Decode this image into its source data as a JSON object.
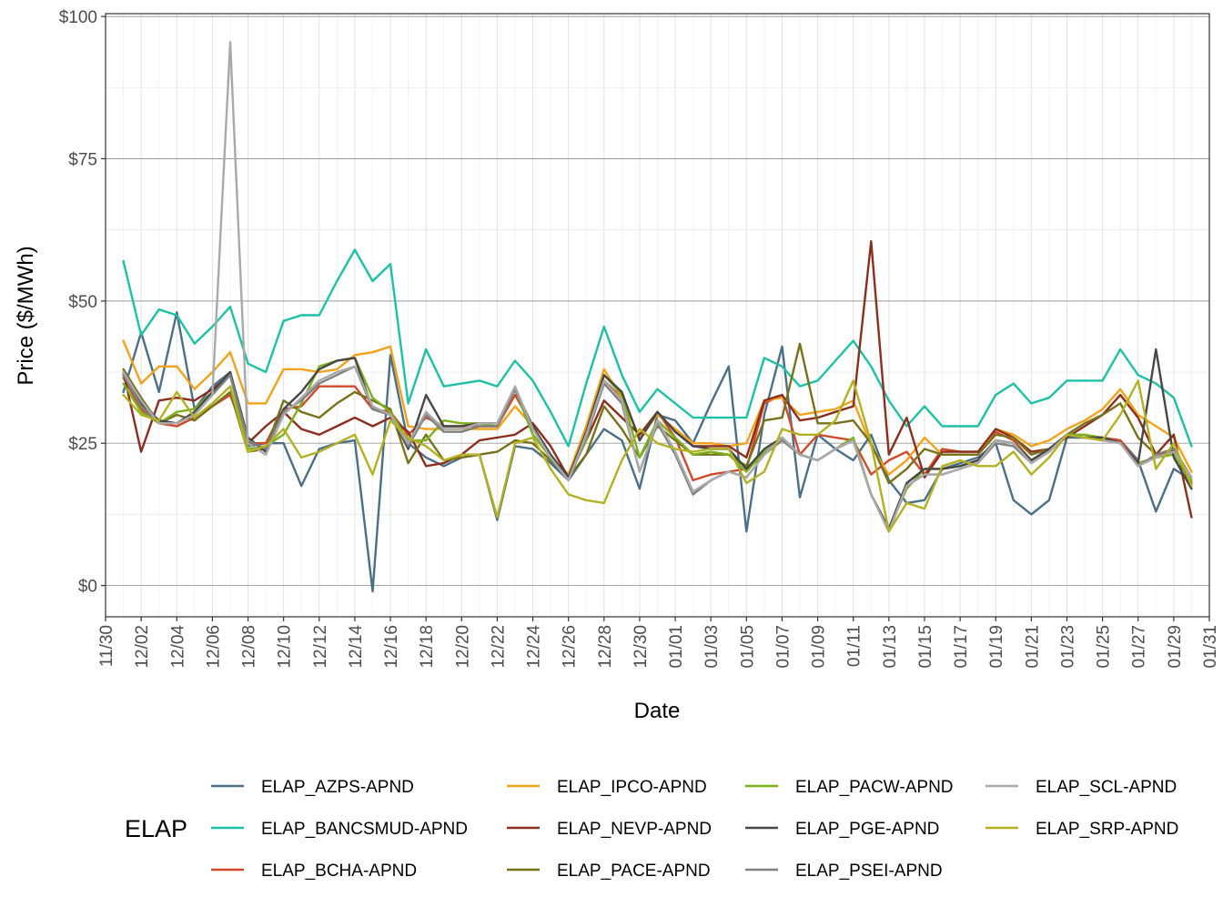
{
  "chart_data": {
    "type": "line",
    "xlabel": "Date",
    "ylabel": "Price ($/MWh)",
    "ylim": [
      -5.5,
      100.5
    ],
    "y_ticks": [
      {
        "value": 0,
        "label": "$0"
      },
      {
        "value": 25,
        "label": "$25"
      },
      {
        "value": 50,
        "label": "$50"
      },
      {
        "value": 75,
        "label": "$75"
      },
      {
        "value": 100,
        "label": "$100"
      }
    ],
    "x_tick_labels": [
      "11/30",
      "12/02",
      "12/04",
      "12/06",
      "12/08",
      "12/10",
      "12/12",
      "12/14",
      "12/16",
      "12/18",
      "12/20",
      "12/22",
      "12/24",
      "12/26",
      "12/28",
      "12/30",
      "01/01",
      "01/03",
      "01/05",
      "01/07",
      "01/09",
      "01/11",
      "01/13",
      "01/15",
      "01/17",
      "01/19",
      "01/21",
      "01/23",
      "01/25",
      "01/27",
      "01/29",
      "01/31"
    ],
    "x": [
      "12/01",
      "12/02",
      "12/03",
      "12/04",
      "12/05",
      "12/06",
      "12/07",
      "12/08",
      "12/09",
      "12/10",
      "12/11",
      "12/12",
      "12/13",
      "12/14",
      "12/15",
      "12/16",
      "12/17",
      "12/18",
      "12/19",
      "12/20",
      "12/21",
      "12/22",
      "12/23",
      "12/24",
      "12/25",
      "12/26",
      "12/27",
      "12/28",
      "12/29",
      "12/30",
      "12/31",
      "01/01",
      "01/02",
      "01/03",
      "01/04",
      "01/05",
      "01/06",
      "01/07",
      "01/08",
      "01/09",
      "01/10",
      "01/11",
      "01/12",
      "01/13",
      "01/14",
      "01/15",
      "01/16",
      "01/17",
      "01/18",
      "01/19",
      "01/20",
      "01/21",
      "01/22",
      "01/23",
      "01/24",
      "01/25",
      "01/26",
      "01/27",
      "01/28",
      "01/29",
      "01/30"
    ],
    "grid": true,
    "legend_title": "ELAP",
    "legend_position": "bottom",
    "series": [
      {
        "name": "ELAP_AZPS-APND",
        "color": "#4b6f86",
        "values": [
          34,
          44.5,
          34,
          48,
          31,
          35,
          37.5,
          24.5,
          25,
          25,
          17.5,
          24,
          25,
          25.5,
          -1,
          40.5,
          25,
          22.5,
          21,
          22.5,
          23,
          11.5,
          24.5,
          24,
          21.5,
          18.5,
          23,
          27.5,
          25.5,
          17,
          30,
          29,
          25,
          32,
          38.5,
          9.5,
          30,
          42,
          15.5,
          26.5,
          24,
          22,
          26.5,
          18.5,
          14.5,
          15,
          20.5,
          21.5,
          22.5,
          25,
          15,
          12.5,
          15,
          26,
          26,
          26,
          25.5,
          22,
          13,
          20.5,
          18.5
        ]
      },
      {
        "name": "ELAP_BANCSMUD-APND",
        "color": "#1ec0a6",
        "values": [
          57,
          44,
          48.5,
          47.5,
          42.5,
          45.5,
          49,
          39,
          37.5,
          46.5,
          47.5,
          47.5,
          53.5,
          59,
          53.5,
          56.5,
          32,
          41.5,
          35,
          35.5,
          36,
          35,
          39.5,
          36,
          30.5,
          24.5,
          35.5,
          45.5,
          37,
          30.5,
          34.5,
          32,
          29.5,
          29.5,
          29.5,
          29.5,
          40,
          38.5,
          35,
          36,
          39.5,
          43,
          38.5,
          32.5,
          28,
          31.5,
          28,
          28,
          28,
          33.5,
          35.5,
          32,
          33,
          36,
          36,
          36,
          41.5,
          37,
          35.5,
          33,
          24.5
        ]
      },
      {
        "name": "ELAP_BCHA-APND",
        "color": "#d1492a",
        "values": [
          36.5,
          31,
          28.5,
          28,
          29.5,
          31.5,
          33.5,
          25,
          25,
          31,
          31.5,
          35,
          35,
          35,
          31,
          30.5,
          26.5,
          29.5,
          28,
          28,
          28,
          28,
          33.5,
          28,
          22.5,
          19.5,
          27.5,
          36,
          33,
          26,
          30.5,
          26,
          18.5,
          19.5,
          20,
          20.5,
          32,
          33.5,
          23,
          26.5,
          26,
          25.5,
          19.5,
          22,
          23.5,
          19.5,
          24,
          23.5,
          23.5,
          27,
          25.5,
          22,
          24,
          26.5,
          26,
          26,
          25.5,
          21.5,
          22.5,
          24,
          18
        ]
      },
      {
        "name": "ELAP_IPCO-APND",
        "color": "#f2a21b",
        "values": [
          43,
          35.5,
          38.5,
          38.5,
          34.5,
          37.5,
          41,
          32,
          32,
          38,
          38,
          37.5,
          38,
          40.5,
          41,
          42,
          28,
          27.5,
          27.5,
          27.5,
          27.5,
          27.5,
          31.5,
          28,
          22.5,
          19.5,
          28,
          38,
          33,
          26,
          30,
          27.5,
          25,
          25,
          24.5,
          25,
          32.5,
          33,
          30,
          30.5,
          31,
          32.5,
          24.5,
          19.5,
          22,
          26,
          23,
          23,
          23,
          27.5,
          26.5,
          24.5,
          25.5,
          27.5,
          29,
          31,
          34.5,
          30,
          28,
          26,
          20
        ]
      },
      {
        "name": "ELAP_NEVP-APND",
        "color": "#8c2e1d",
        "values": [
          37.5,
          23.5,
          32.5,
          33,
          32.5,
          34.5,
          37,
          25,
          28,
          30.5,
          27.5,
          26.5,
          28,
          29.5,
          28,
          29.5,
          27,
          21,
          21.5,
          23,
          25.5,
          26,
          26.5,
          28.5,
          24.5,
          19,
          25.5,
          32.5,
          29.5,
          26.5,
          30.5,
          27,
          24.5,
          24.5,
          24.5,
          22.5,
          32.5,
          33.5,
          29,
          29.5,
          30.5,
          31.5,
          60.5,
          23,
          29.5,
          19,
          23.5,
          23.5,
          23.5,
          27.5,
          26,
          23.5,
          24,
          26,
          28,
          30,
          33.5,
          29.5,
          23,
          26.5,
          12
        ]
      },
      {
        "name": "ELAP_PACE-APND",
        "color": "#77721a",
        "values": [
          38,
          33,
          28.5,
          30,
          29,
          31.5,
          34,
          23.5,
          24,
          32.5,
          30.5,
          29.5,
          32,
          34,
          32.5,
          31,
          21.5,
          26.5,
          22,
          22.5,
          23,
          23.5,
          25.5,
          25,
          22,
          19,
          23,
          31.5,
          27.5,
          22.5,
          28,
          25.5,
          23,
          23,
          23,
          21,
          29,
          29.5,
          42.5,
          28.5,
          28.5,
          29,
          25,
          18,
          20.5,
          24,
          23,
          23,
          23,
          26.5,
          26,
          23,
          24,
          26.5,
          28.5,
          30,
          32,
          26,
          23,
          24,
          17.5
        ]
      },
      {
        "name": "ELAP_PACW-APND",
        "color": "#7bb21c",
        "values": [
          35.5,
          30.5,
          28.5,
          30.5,
          31,
          34,
          37,
          24,
          24.5,
          26.5,
          32,
          38.5,
          39.5,
          40,
          33,
          30.5,
          25.5,
          25.5,
          29,
          28.5,
          28.5,
          28,
          34.5,
          26.5,
          22.5,
          19,
          25.5,
          37,
          33.5,
          22.5,
          29,
          26,
          23,
          23.5,
          23,
          20,
          23.5,
          25.5,
          23,
          22,
          24,
          26,
          16,
          10,
          17,
          20.5,
          20.5,
          21,
          22,
          25.5,
          25,
          22,
          24,
          26.5,
          26.5,
          26,
          25,
          21.5,
          22.5,
          23,
          18.5
        ]
      },
      {
        "name": "ELAP_PGE-APND",
        "color": "#474747",
        "values": [
          37,
          32,
          29,
          28.5,
          30.5,
          34,
          37.5,
          26,
          23.5,
          31,
          34,
          38,
          39.5,
          40,
          31,
          30,
          24,
          33.5,
          28,
          28,
          28.5,
          28.5,
          34.5,
          28,
          23,
          19,
          27,
          37,
          34,
          25.5,
          30.5,
          27,
          24.5,
          24,
          24,
          20.5,
          24,
          26,
          23,
          22,
          24,
          25.5,
          16,
          10,
          18,
          20.5,
          20.5,
          21,
          22,
          25.5,
          25,
          22,
          24,
          26.5,
          26,
          26,
          25,
          21.5,
          41.5,
          22.5,
          17
        ]
      },
      {
        "name": "ELAP_PSEI-APND",
        "color": "#808080",
        "values": [
          37,
          31.5,
          28.5,
          28.5,
          30,
          33.5,
          37,
          25.5,
          24,
          30.5,
          32.5,
          35.5,
          37,
          38.5,
          31,
          30,
          24.5,
          30,
          27,
          27,
          28,
          28,
          34.5,
          27.5,
          22.5,
          18.5,
          26,
          35.5,
          32,
          20,
          28.5,
          23,
          16,
          18.5,
          20,
          19,
          23,
          25.5,
          23,
          22,
          24,
          25.5,
          16,
          9.5,
          17.5,
          19.5,
          19.5,
          20.5,
          21.5,
          25,
          24.5,
          21.5,
          23.5,
          26.5,
          26,
          25.5,
          25,
          21,
          23,
          24,
          19
        ]
      },
      {
        "name": "ELAP_SCL-APND",
        "color": "#a9a9a9",
        "values": [
          37.5,
          32.5,
          28.5,
          28.5,
          30,
          33.5,
          95.5,
          25,
          23,
          30,
          33,
          36,
          37.5,
          38.5,
          31.5,
          30,
          25,
          30.5,
          27.5,
          27.5,
          28.5,
          28.5,
          35,
          27.5,
          22.5,
          18.5,
          26.5,
          36,
          32.5,
          20,
          29,
          23.5,
          16.5,
          18.5,
          20,
          19,
          23,
          26,
          23,
          22,
          24,
          25.5,
          16,
          9.5,
          17.5,
          19.5,
          19.5,
          20.5,
          21.5,
          25.5,
          25,
          21.5,
          23.5,
          26.5,
          26,
          25.5,
          25,
          21,
          22.5,
          23.5,
          19
        ]
      },
      {
        "name": "ELAP_SRP-APND",
        "color": "#b3b022",
        "values": [
          33.5,
          30,
          29,
          34,
          29.5,
          32,
          35,
          23.5,
          24.5,
          27.5,
          22.5,
          23.5,
          25,
          26.5,
          19.5,
          29,
          26,
          24.5,
          22,
          23,
          23,
          12,
          25,
          26,
          20.5,
          16,
          15,
          14.5,
          22,
          27.5,
          25,
          24,
          23.5,
          24,
          24,
          18,
          20,
          27.5,
          26.5,
          26.5,
          29,
          36,
          25,
          9.5,
          14.5,
          13.5,
          21,
          22,
          21,
          21,
          23.5,
          19.5,
          22.5,
          26.5,
          26,
          25.5,
          30,
          36,
          20.5,
          25,
          17.5
        ]
      }
    ]
  }
}
